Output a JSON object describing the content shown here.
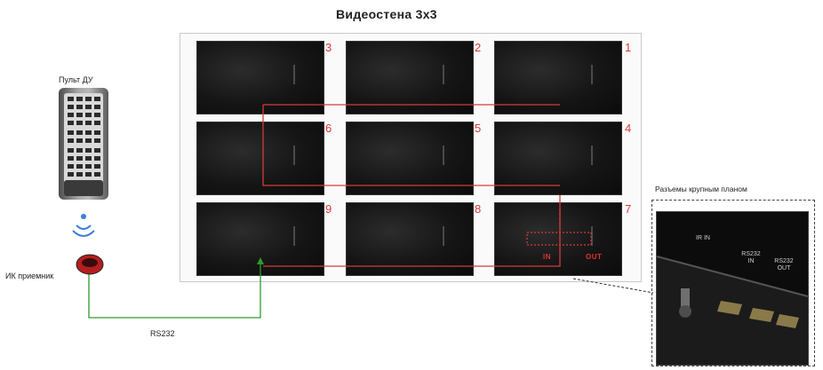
{
  "title": "Видеостена 3х3",
  "screens": [
    {
      "num": "3"
    },
    {
      "num": "2"
    },
    {
      "num": "1"
    },
    {
      "num": "6"
    },
    {
      "num": "5"
    },
    {
      "num": "4"
    },
    {
      "num": "9"
    },
    {
      "num": "8"
    },
    {
      "num": "7"
    }
  ],
  "remote_label": "Пульт ДУ",
  "ir_receiver_label": "ИК приемник",
  "rs_label": "RS232",
  "zoom_label": "Разъемы крупным планом",
  "zoom_ports": {
    "ir": "IR IN",
    "rs232_in": "RS232 IN",
    "rs232_out": "RS232 OUT"
  },
  "screen7_ports": {
    "in": "IN",
    "out": "OUT"
  },
  "colors": {
    "link_red": "#d63a3a",
    "rs_green": "#2e9a2e"
  }
}
